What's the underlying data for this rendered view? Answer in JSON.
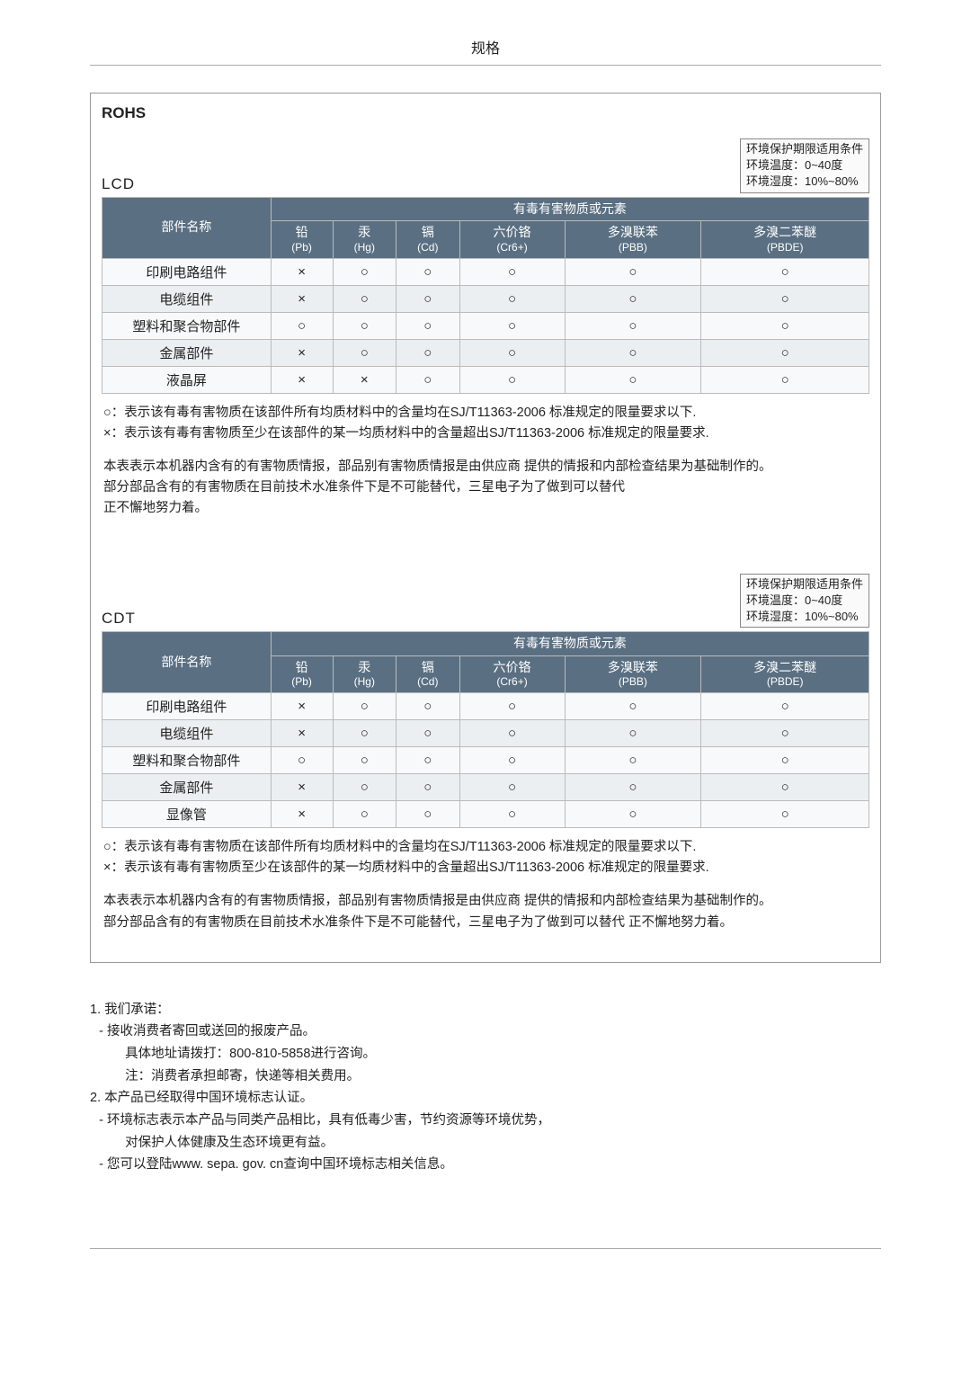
{
  "page_header": "规格",
  "colors": {
    "header_bg": "#5a6f82",
    "header_fg": "#ffffff",
    "row_bg": "#f8f9fa",
    "row_alt_bg": "#eceff1",
    "border": "#bbbbbb",
    "text": "#222222"
  },
  "marks": {
    "ok": "○",
    "over": "×"
  },
  "main_title": "ROHS",
  "env_box": {
    "line1": "环境保护期限适用条件",
    "line2": "环境温度：0~40度",
    "line3": "环境湿度：10%~80%"
  },
  "table_header": {
    "component": "部件名称",
    "substances": "有毒有害物质或元素",
    "cols": [
      {
        "top": "铅",
        "sub": "(Pb)"
      },
      {
        "top": "汞",
        "sub": "(Hg)"
      },
      {
        "top": "镉",
        "sub": "(Cd)"
      },
      {
        "top": "六价铬",
        "sub": "(Cr6+)"
      },
      {
        "top": "多溴联苯",
        "sub": "(PBB)"
      },
      {
        "top": "多溴二苯醚",
        "sub": "(PBDE)"
      }
    ]
  },
  "sections": [
    {
      "label": "LCD",
      "rows": [
        {
          "name": "印刷电路组件",
          "marks": [
            "over",
            "ok",
            "ok",
            "ok",
            "ok",
            "ok"
          ]
        },
        {
          "name": "电缆组件",
          "marks": [
            "over",
            "ok",
            "ok",
            "ok",
            "ok",
            "ok"
          ]
        },
        {
          "name": "塑料和聚合物部件",
          "marks": [
            "ok",
            "ok",
            "ok",
            "ok",
            "ok",
            "ok"
          ]
        },
        {
          "name": "金属部件",
          "marks": [
            "over",
            "ok",
            "ok",
            "ok",
            "ok",
            "ok"
          ]
        },
        {
          "name": "液晶屏",
          "marks": [
            "over",
            "over",
            "ok",
            "ok",
            "ok",
            "ok"
          ]
        }
      ],
      "notes": [
        "○：表示该有毒有害物质在该部件所有均质材料中的含量均在SJ/T11363-2006 标准规定的限量要求以下.\n×：表示该有毒有害物质至少在该部件的某一均质材料中的含量超出SJ/T11363-2006 标准规定的限量要求.",
        "本表表示本机器内含有的有害物质情报，部品别有害物质情报是由供应商 提供的情报和内部检查结果为基础制作的。\n部分部品含有的有害物质在目前技术水准条件下是不可能替代，三星电子为了做到可以替代\n正不懈地努力着。"
      ]
    },
    {
      "label": "CDT",
      "rows": [
        {
          "name": "印刷电路组件",
          "marks": [
            "over",
            "ok",
            "ok",
            "ok",
            "ok",
            "ok"
          ]
        },
        {
          "name": "电缆组件",
          "marks": [
            "over",
            "ok",
            "ok",
            "ok",
            "ok",
            "ok"
          ]
        },
        {
          "name": "塑料和聚合物部件",
          "marks": [
            "ok",
            "ok",
            "ok",
            "ok",
            "ok",
            "ok"
          ]
        },
        {
          "name": "金属部件",
          "marks": [
            "over",
            "ok",
            "ok",
            "ok",
            "ok",
            "ok"
          ]
        },
        {
          "name": "显像管",
          "marks": [
            "over",
            "ok",
            "ok",
            "ok",
            "ok",
            "ok"
          ]
        }
      ],
      "notes": [
        "○：表示该有毒有害物质在该部件所有均质材料中的含量均在SJ/T11363-2006 标准规定的限量要求以下.\n×：表示该有毒有害物质至少在该部件的某一均质材料中的含量超出SJ/T11363-2006 标准规定的限量要求.",
        "本表表示本机器内含有的有害物质情报，部品别有害物质情报是由供应商 提供的情报和内部检查结果为基础制作的。\n部分部品含有的有害物质在目前技术水准条件下是不可能替代，三星电子为了做到可以替代 正不懈地努力着。"
      ]
    }
  ],
  "commitments": {
    "items": [
      {
        "head": "1. 我们承诺：",
        "lines": [
          "- 接收消费者寄回或送回的报废产品。",
          "具体地址请拨打：800-810-5858进行咨询。",
          "注：消费者承担邮寄，快递等相关费用。"
        ]
      },
      {
        "head": "2. 本产品已经取得中国环境标志认证。",
        "lines": [
          "- 环境标志表示本产品与同类产品相比，具有低毒少害，节约资源等环境优势，",
          "对保护人体健康及生态环境更有益。",
          "- 您可以登陆www. sepa. gov. cn查询中国环境标志相关信息。"
        ]
      }
    ]
  }
}
